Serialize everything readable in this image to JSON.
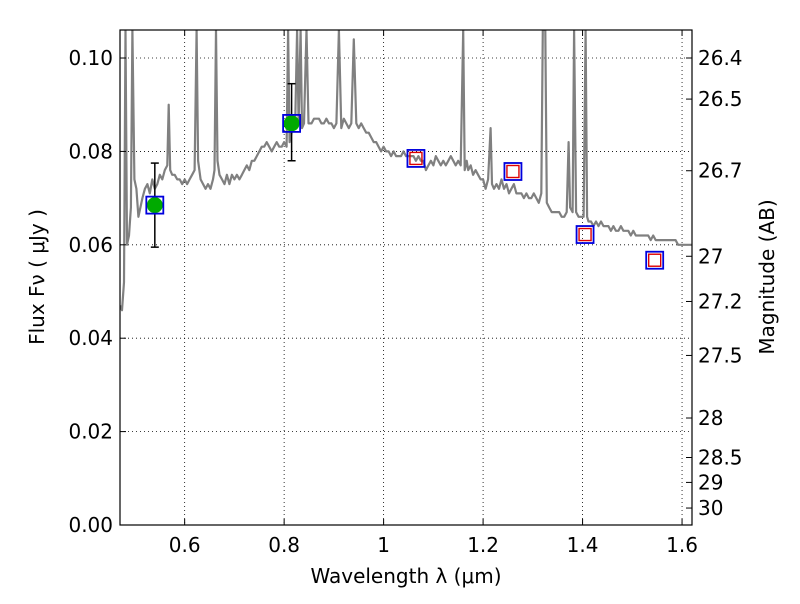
{
  "chart_data": {
    "type": "scatter",
    "xlabel": "Wavelength  λ (μm)",
    "ylabel": "Flux  Fν  ( μJy )",
    "y2label": "Magnitude (AB)",
    "xlim": [
      0.47,
      1.62
    ],
    "ylim": [
      0.0,
      0.106
    ],
    "grid": true,
    "grid_style": "dotted",
    "x_ticks": [
      {
        "value": 0.6,
        "label": "0.6"
      },
      {
        "value": 0.8,
        "label": "0.8"
      },
      {
        "value": 1.0,
        "label": "1"
      },
      {
        "value": 1.2,
        "label": "1.2"
      },
      {
        "value": 1.4,
        "label": "1.4"
      },
      {
        "value": 1.6,
        "label": "1.6"
      }
    ],
    "y_ticks": [
      {
        "value": 0.0,
        "label": "0.00"
      },
      {
        "value": 0.02,
        "label": "0.02"
      },
      {
        "value": 0.04,
        "label": "0.04"
      },
      {
        "value": 0.06,
        "label": "0.06"
      },
      {
        "value": 0.08,
        "label": "0.08"
      },
      {
        "value": 0.1,
        "label": "0.10"
      }
    ],
    "y2_ticks": [
      {
        "mag": 26.4,
        "label": "26.4"
      },
      {
        "mag": 26.5,
        "label": "26.5"
      },
      {
        "mag": 26.7,
        "label": "26.7"
      },
      {
        "mag": 27.0,
        "label": "27"
      },
      {
        "mag": 27.2,
        "label": "27.2"
      },
      {
        "mag": 27.5,
        "label": "27.5"
      },
      {
        "mag": 28.0,
        "label": "28"
      },
      {
        "mag": 28.5,
        "label": "28.5"
      },
      {
        "mag": 29.0,
        "label": "29"
      },
      {
        "mag": 30.0,
        "label": "30"
      }
    ],
    "series": [
      {
        "type": "line",
        "color": "#808080",
        "points": [
          [
            0.47,
            0.047
          ],
          [
            0.474,
            0.046
          ],
          [
            0.478,
            0.052
          ],
          [
            0.481,
            0.106
          ],
          [
            0.484,
            0.06
          ],
          [
            0.488,
            0.062
          ],
          [
            0.492,
            0.068
          ],
          [
            0.495,
            0.106
          ],
          [
            0.499,
            0.074
          ],
          [
            0.503,
            0.072
          ],
          [
            0.507,
            0.066
          ],
          [
            0.511,
            0.068
          ],
          [
            0.515,
            0.07
          ],
          [
            0.52,
            0.072
          ],
          [
            0.525,
            0.073
          ],
          [
            0.53,
            0.071
          ],
          [
            0.535,
            0.074
          ],
          [
            0.54,
            0.072
          ],
          [
            0.545,
            0.073
          ],
          [
            0.55,
            0.075
          ],
          [
            0.555,
            0.074
          ],
          [
            0.56,
            0.076
          ],
          [
            0.565,
            0.077
          ],
          [
            0.568,
            0.09
          ],
          [
            0.571,
            0.076
          ],
          [
            0.575,
            0.075
          ],
          [
            0.58,
            0.075
          ],
          [
            0.585,
            0.074
          ],
          [
            0.59,
            0.074
          ],
          [
            0.595,
            0.073
          ],
          [
            0.6,
            0.074
          ],
          [
            0.605,
            0.073
          ],
          [
            0.61,
            0.074
          ],
          [
            0.615,
            0.075
          ],
          [
            0.62,
            0.076
          ],
          [
            0.624,
            0.106
          ],
          [
            0.627,
            0.078
          ],
          [
            0.632,
            0.074
          ],
          [
            0.637,
            0.073
          ],
          [
            0.642,
            0.072
          ],
          [
            0.647,
            0.073
          ],
          [
            0.652,
            0.072
          ],
          [
            0.657,
            0.074
          ],
          [
            0.66,
            0.076
          ],
          [
            0.663,
            0.106
          ],
          [
            0.666,
            0.078
          ],
          [
            0.67,
            0.075
          ],
          [
            0.675,
            0.074
          ],
          [
            0.68,
            0.073
          ],
          [
            0.685,
            0.075
          ],
          [
            0.69,
            0.073
          ],
          [
            0.695,
            0.075
          ],
          [
            0.7,
            0.074
          ],
          [
            0.705,
            0.075
          ],
          [
            0.71,
            0.074
          ],
          [
            0.715,
            0.075
          ],
          [
            0.72,
            0.076
          ],
          [
            0.725,
            0.077
          ],
          [
            0.73,
            0.076
          ],
          [
            0.735,
            0.078
          ],
          [
            0.74,
            0.078
          ],
          [
            0.745,
            0.079
          ],
          [
            0.75,
            0.08
          ],
          [
            0.755,
            0.081
          ],
          [
            0.76,
            0.081
          ],
          [
            0.765,
            0.082
          ],
          [
            0.77,
            0.081
          ],
          [
            0.775,
            0.08
          ],
          [
            0.78,
            0.081
          ],
          [
            0.785,
            0.082
          ],
          [
            0.79,
            0.081
          ],
          [
            0.795,
            0.081
          ],
          [
            0.8,
            0.082
          ],
          [
            0.805,
            0.081
          ],
          [
            0.808,
            0.106
          ],
          [
            0.811,
            0.082
          ],
          [
            0.815,
            0.084
          ],
          [
            0.818,
            0.086
          ],
          [
            0.822,
            0.085
          ],
          [
            0.826,
            0.106
          ],
          [
            0.829,
            0.086
          ],
          [
            0.833,
            0.106
          ],
          [
            0.836,
            0.085
          ],
          [
            0.84,
            0.086
          ],
          [
            0.845,
            0.106
          ],
          [
            0.849,
            0.086
          ],
          [
            0.855,
            0.086
          ],
          [
            0.86,
            0.087
          ],
          [
            0.865,
            0.087
          ],
          [
            0.87,
            0.087
          ],
          [
            0.875,
            0.086
          ],
          [
            0.88,
            0.086
          ],
          [
            0.885,
            0.087
          ],
          [
            0.89,
            0.086
          ],
          [
            0.895,
            0.086
          ],
          [
            0.9,
            0.085
          ],
          [
            0.905,
            0.086
          ],
          [
            0.91,
            0.106
          ],
          [
            0.915,
            0.085
          ],
          [
            0.92,
            0.087
          ],
          [
            0.925,
            0.086
          ],
          [
            0.93,
            0.085
          ],
          [
            0.935,
            0.086
          ],
          [
            0.94,
            0.104
          ],
          [
            0.945,
            0.086
          ],
          [
            0.95,
            0.085
          ],
          [
            0.955,
            0.086
          ],
          [
            0.96,
            0.085
          ],
          [
            0.965,
            0.084
          ],
          [
            0.97,
            0.084
          ],
          [
            0.975,
            0.083
          ],
          [
            0.98,
            0.082
          ],
          [
            0.985,
            0.082
          ],
          [
            0.99,
            0.081
          ],
          [
            0.995,
            0.08
          ],
          [
            1.0,
            0.081
          ],
          [
            1.005,
            0.08
          ],
          [
            1.01,
            0.08
          ],
          [
            1.015,
            0.079
          ],
          [
            1.02,
            0.08
          ],
          [
            1.025,
            0.079
          ],
          [
            1.03,
            0.079
          ],
          [
            1.035,
            0.079
          ],
          [
            1.04,
            0.08
          ],
          [
            1.045,
            0.079
          ],
          [
            1.05,
            0.079
          ],
          [
            1.055,
            0.079
          ],
          [
            1.06,
            0.079
          ],
          [
            1.065,
            0.078
          ],
          [
            1.07,
            0.079
          ],
          [
            1.075,
            0.078
          ],
          [
            1.08,
            0.078
          ],
          [
            1.085,
            0.076
          ],
          [
            1.09,
            0.077
          ],
          [
            1.095,
            0.078
          ],
          [
            1.1,
            0.077
          ],
          [
            1.105,
            0.079
          ],
          [
            1.11,
            0.078
          ],
          [
            1.115,
            0.077
          ],
          [
            1.12,
            0.078
          ],
          [
            1.125,
            0.077
          ],
          [
            1.13,
            0.078
          ],
          [
            1.135,
            0.079
          ],
          [
            1.14,
            0.078
          ],
          [
            1.145,
            0.077
          ],
          [
            1.15,
            0.078
          ],
          [
            1.155,
            0.077
          ],
          [
            1.16,
            0.106
          ],
          [
            1.163,
            0.076
          ],
          [
            1.167,
            0.078
          ],
          [
            1.17,
            0.076
          ],
          [
            1.175,
            0.077
          ],
          [
            1.18,
            0.075
          ],
          [
            1.185,
            0.076
          ],
          [
            1.19,
            0.075
          ],
          [
            1.195,
            0.074
          ],
          [
            1.2,
            0.074
          ],
          [
            1.205,
            0.072
          ],
          [
            1.21,
            0.074
          ],
          [
            1.215,
            0.085
          ],
          [
            1.218,
            0.073
          ],
          [
            1.222,
            0.072
          ],
          [
            1.227,
            0.073
          ],
          [
            1.232,
            0.072
          ],
          [
            1.237,
            0.074
          ],
          [
            1.242,
            0.072
          ],
          [
            1.247,
            0.073
          ],
          [
            1.252,
            0.071
          ],
          [
            1.257,
            0.072
          ],
          [
            1.262,
            0.073
          ],
          [
            1.267,
            0.071
          ],
          [
            1.272,
            0.071
          ],
          [
            1.277,
            0.071
          ],
          [
            1.282,
            0.07
          ],
          [
            1.287,
            0.071
          ],
          [
            1.292,
            0.07
          ],
          [
            1.297,
            0.07
          ],
          [
            1.302,
            0.071
          ],
          [
            1.307,
            0.07
          ],
          [
            1.312,
            0.069
          ],
          [
            1.317,
            0.071
          ],
          [
            1.32,
            0.106
          ],
          [
            1.325,
            0.106
          ],
          [
            1.328,
            0.069
          ],
          [
            1.333,
            0.068
          ],
          [
            1.338,
            0.067
          ],
          [
            1.343,
            0.067
          ],
          [
            1.348,
            0.067
          ],
          [
            1.353,
            0.067
          ],
          [
            1.358,
            0.066
          ],
          [
            1.363,
            0.066
          ],
          [
            1.368,
            0.067
          ],
          [
            1.372,
            0.082
          ],
          [
            1.375,
            0.068
          ],
          [
            1.38,
            0.067
          ],
          [
            1.383,
            0.106
          ],
          [
            1.387,
            0.067
          ],
          [
            1.392,
            0.066
          ],
          [
            1.397,
            0.066
          ],
          [
            1.402,
            0.066
          ],
          [
            1.406,
            0.106
          ],
          [
            1.409,
            0.066
          ],
          [
            1.412,
            0.065
          ],
          [
            1.417,
            0.065
          ],
          [
            1.422,
            0.064
          ],
          [
            1.427,
            0.065
          ],
          [
            1.432,
            0.064
          ],
          [
            1.437,
            0.065
          ],
          [
            1.442,
            0.064
          ],
          [
            1.447,
            0.064
          ],
          [
            1.452,
            0.064
          ],
          [
            1.457,
            0.063
          ],
          [
            1.462,
            0.064
          ],
          [
            1.467,
            0.063
          ],
          [
            1.472,
            0.063
          ],
          [
            1.477,
            0.064
          ],
          [
            1.482,
            0.063
          ],
          [
            1.487,
            0.063
          ],
          [
            1.492,
            0.063
          ],
          [
            1.497,
            0.062
          ],
          [
            1.502,
            0.063
          ],
          [
            1.507,
            0.062
          ],
          [
            1.512,
            0.062
          ],
          [
            1.517,
            0.062
          ],
          [
            1.522,
            0.062
          ],
          [
            1.527,
            0.062
          ],
          [
            1.532,
            0.062
          ],
          [
            1.537,
            0.061
          ],
          [
            1.542,
            0.062
          ],
          [
            1.547,
            0.061
          ],
          [
            1.552,
            0.061
          ],
          [
            1.557,
            0.061
          ],
          [
            1.562,
            0.061
          ],
          [
            1.567,
            0.061
          ],
          [
            1.572,
            0.061
          ],
          [
            1.577,
            0.061
          ],
          [
            1.582,
            0.061
          ],
          [
            1.587,
            0.061
          ],
          [
            1.592,
            0.06
          ],
          [
            1.597,
            0.06
          ],
          [
            1.602,
            0.06
          ],
          [
            1.607,
            0.06
          ],
          [
            1.612,
            0.06
          ],
          [
            1.617,
            0.06
          ],
          [
            1.62,
            0.06
          ]
        ]
      },
      {
        "type": "scatter",
        "marker": "filled-circle",
        "color": "#00aa00",
        "points": [
          {
            "x": 0.54,
            "y": 0.0685,
            "yerr": [
              0.0595,
              0.0775
            ]
          },
          {
            "x": 0.815,
            "y": 0.086,
            "yerr": [
              0.078,
              0.0945
            ]
          }
        ]
      },
      {
        "type": "scatter",
        "marker": "open-square",
        "color": "#dd0000",
        "points": [
          {
            "x": 1.065,
            "y": 0.0785
          },
          {
            "x": 1.26,
            "y": 0.0757
          },
          {
            "x": 1.405,
            "y": 0.0622
          },
          {
            "x": 1.545,
            "y": 0.0567
          }
        ]
      },
      {
        "type": "scatter",
        "marker": "open-square",
        "color": "#0000dd",
        "points": [
          {
            "x": 0.54,
            "y": 0.0685
          },
          {
            "x": 0.815,
            "y": 0.086
          },
          {
            "x": 1.065,
            "y": 0.0785
          },
          {
            "x": 1.26,
            "y": 0.0757
          },
          {
            "x": 1.405,
            "y": 0.0622
          },
          {
            "x": 1.545,
            "y": 0.0567
          }
        ]
      }
    ]
  }
}
